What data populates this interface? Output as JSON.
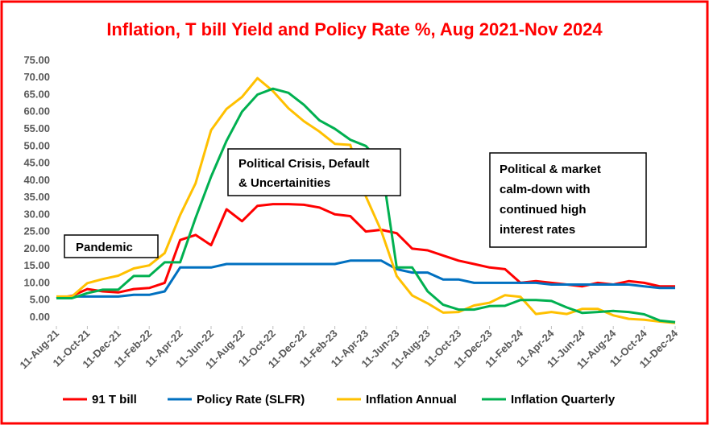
{
  "chart_data": {
    "type": "line",
    "title": "Inflation, T bill Yield and Policy Rate %, Aug 2021-Nov 2024",
    "categories": [
      "11-Aug-21",
      null,
      "11-Oct-21",
      null,
      "11-Dec-21",
      null,
      "11-Feb-22",
      null,
      "11-Apr-22",
      null,
      "11-Jun-22",
      null,
      "11-Aug-22",
      null,
      "11-Oct-22",
      null,
      "11-Dec-22",
      null,
      "11-Feb-23",
      null,
      "11-Apr-23",
      null,
      "11-Jun-23",
      null,
      "11-Aug-23",
      null,
      "11-Oct-23",
      null,
      "11-Dec-23",
      null,
      "11-Feb-24",
      null,
      "11-Apr-24",
      null,
      "11-Jun-24",
      null,
      "11-Aug-24",
      null,
      "11-Oct-24",
      null,
      "11-Dec-24"
    ],
    "series": [
      {
        "name": "91 T bill",
        "color": "#ff0000",
        "values": [
          5.5,
          6.2,
          8.2,
          7.5,
          7.2,
          8.2,
          8.5,
          10,
          22.5,
          24,
          21,
          31.5,
          28,
          32.5,
          33,
          33,
          32.8,
          32,
          30,
          29.5,
          25,
          25.5,
          24.5,
          20,
          19.5,
          18,
          16.5,
          15.5,
          14.5,
          14,
          10,
          10.5,
          10,
          9.5,
          9,
          10,
          9.5,
          10.5,
          10,
          9,
          9
        ]
      },
      {
        "name": "Policy Rate (SLFR)",
        "color": "#0070c0",
        "values": [
          5.5,
          6,
          6,
          6,
          6,
          6.5,
          6.5,
          7.5,
          14.5,
          14.5,
          14.5,
          15.5,
          15.5,
          15.5,
          15.5,
          15.5,
          15.5,
          15.5,
          15.5,
          16.5,
          16.5,
          16.5,
          14,
          13,
          13,
          11,
          11,
          10,
          10,
          10,
          10,
          10,
          9.5,
          9.5,
          9.5,
          9.5,
          9.5,
          9.5,
          9,
          8.5,
          8.5
        ]
      },
      {
        "name": "Inflation Annual",
        "color": "#ffc000",
        "values": [
          6,
          6,
          9.9,
          11.1,
          12.1,
          14.2,
          15.1,
          18.7,
          29.8,
          39.1,
          54.6,
          60.8,
          64.3,
          69.8,
          66,
          61,
          57.2,
          54.2,
          50.6,
          50.3,
          35.3,
          25.2,
          12,
          6.3,
          4,
          1.3,
          1.5,
          3.4,
          4.2,
          6.4,
          5.9,
          0.9,
          1.5,
          0.9,
          2.4,
          2.4,
          0.5,
          -0.5,
          -0.8,
          -1.3,
          -1.7
        ]
      },
      {
        "name": "Inflation Quarterly",
        "color": "#00b050",
        "values": [
          5.5,
          5.5,
          7,
          8,
          8,
          12,
          12,
          16,
          16,
          29,
          41,
          51.5,
          60,
          65,
          66.7,
          65.5,
          62,
          57.5,
          55,
          51.8,
          50,
          45,
          14.5,
          14.5,
          7.5,
          3.6,
          2.2,
          2.2,
          3.2,
          3.3,
          5,
          5,
          4.7,
          2.8,
          1.2,
          1.5,
          1.8,
          1.5,
          0.8,
          -1,
          -1.5
        ]
      }
    ],
    "ylim": [
      -2.6,
      77.1
    ],
    "yticks": [
      {
        "value": 0,
        "label": "0.00"
      },
      {
        "value": 5,
        "label": "5.00"
      },
      {
        "value": 10,
        "label": "10.00"
      },
      {
        "value": 15,
        "label": "15.00"
      },
      {
        "value": 20,
        "label": "20.00"
      },
      {
        "value": 25,
        "label": "25.00"
      },
      {
        "value": 30,
        "label": "30.00"
      },
      {
        "value": 35,
        "label": "35.00"
      },
      {
        "value": 40,
        "label": "40.00"
      },
      {
        "value": 45,
        "label": "45.00"
      },
      {
        "value": 50,
        "label": "50.00"
      },
      {
        "value": 55,
        "label": "55.00"
      },
      {
        "value": 60,
        "label": "60.00"
      },
      {
        "value": 65,
        "label": "65.00"
      },
      {
        "value": 70,
        "label": "70.00"
      },
      {
        "value": 75,
        "label": "75.00"
      }
    ],
    "grid": false,
    "legend": "bottom",
    "annotations": [
      [
        "Pandemic"
      ],
      [
        "Political Crisis, Default",
        "& Uncertainities"
      ],
      [
        "Political & market",
        "calm-down with",
        "continued high",
        "interest rates"
      ]
    ]
  }
}
